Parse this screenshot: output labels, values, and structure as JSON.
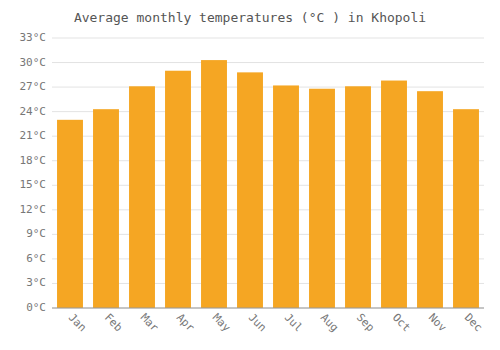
{
  "chart_data": {
    "type": "bar",
    "title": "Average monthly temperatures (°C ) in Khopoli",
    "categories": [
      "Jan",
      "Feb",
      "Mar",
      "Apr",
      "May",
      "Jun",
      "Jul",
      "Aug",
      "Sep",
      "Oct",
      "Nov",
      "Dec"
    ],
    "values": [
      23.0,
      24.3,
      27.1,
      29.0,
      30.3,
      28.8,
      27.2,
      26.8,
      27.1,
      27.8,
      26.5,
      24.3
    ],
    "color": "#F5A623",
    "ylim": [
      0,
      33
    ],
    "yticks": [
      {
        "value": 0,
        "label": "0°C"
      },
      {
        "value": 3,
        "label": "3°C"
      },
      {
        "value": 6,
        "label": "6°C"
      },
      {
        "value": 9,
        "label": "9°C"
      },
      {
        "value": 12,
        "label": "12°C"
      },
      {
        "value": 15,
        "label": "15°C"
      },
      {
        "value": 18,
        "label": "18°C"
      },
      {
        "value": 21,
        "label": "21°C"
      },
      {
        "value": 24,
        "label": "24°C"
      },
      {
        "value": 27,
        "label": "27°C"
      },
      {
        "value": 30,
        "label": "30°C"
      },
      {
        "value": 33,
        "label": "33°C"
      }
    ],
    "grid": true
  }
}
